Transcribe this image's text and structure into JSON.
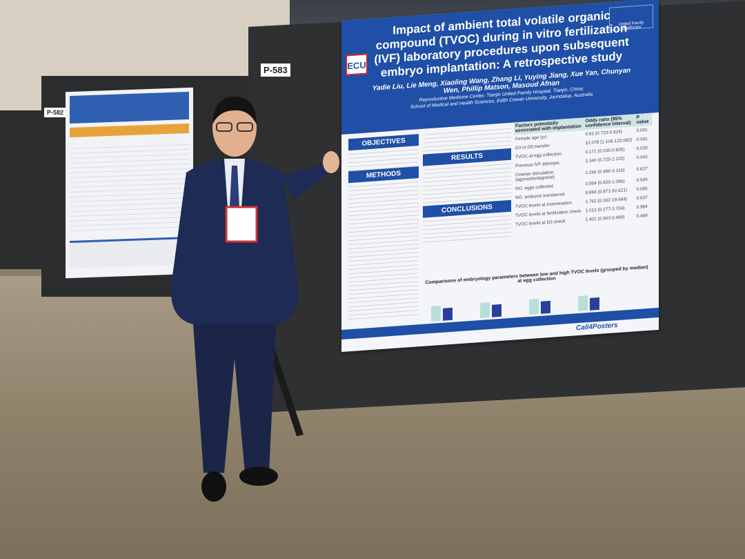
{
  "labels": {
    "main_board": "P-583",
    "left_board": "P-582"
  },
  "poster": {
    "title": "Impact of ambient total volatile organic compound (TVOC) during in vitro fertilization (IVF) laboratory procedures upon subsequent embryo implantation: A retrospective study",
    "authors": "Yadie Liu, Lie Meng, Xiaoling Wang, Zhang Li, Yuying Jiang, Xue Yan, Chunyan Wen, Phillip Matson, Masoud Afnan",
    "affiliation1": "Reproductive Medicine Center, Tianjin United Family Hospital, Tianjin, China;",
    "affiliation2": "School of Medical and Health Sciences, Edith Cowan University, Joondalup, Australia",
    "logo_left": "ECU",
    "logo_right": "United Family Healthcare",
    "sections": {
      "objectives": "OBJECTIVES",
      "methods": "METHODS",
      "results": "RESULTS",
      "conclusions": "CONCLUSIONS"
    },
    "table": {
      "headers": [
        "Factors potentially associated with implantation",
        "Odds ratio (95% confidence interval)",
        "P value"
      ],
      "rows": [
        [
          "Female age (yr)",
          "0.81 (0.723-0.924)",
          "0.001"
        ],
        [
          "D3 or D5 transfer",
          "12.078 (1.105-132.082)",
          "0.041"
        ],
        [
          "TVOC at egg collection",
          "0.171 (0.035-0.835)",
          "0.029"
        ],
        [
          "Previous IVF attempts",
          "1.340 (0.725-2.120)",
          "0.043"
        ],
        [
          "Ovarian stimulation (agonist/antagonist)",
          "1.266 (0.486-3.316)",
          "0.627"
        ],
        [
          "NO. eggs collected",
          "0.954 (0.825-1.096)",
          "0.509"
        ],
        [
          "NO. embryos transferred",
          "8.894 (0.871-92.621)",
          "0.065"
        ],
        [
          "TVOC levels at insemination",
          "1.762 (0.162-19.664)",
          "0.637"
        ],
        [
          "TVOC levels at fertilization check",
          "1.013 (0.277-3.704)",
          "0.984"
        ],
        [
          "TVOC levels at D3 check",
          "1.401 (0.563-3.489)",
          "0.469"
        ]
      ]
    },
    "chart_caption": "Comparisons of embryology parameters between low and high TVOC levels (grouped by median) at egg collection",
    "brand": "Call4Posters"
  },
  "colors": {
    "poster_blue": "#1f4fa6",
    "table_header": "#cfe3e3",
    "bar_light": "#b9ded9",
    "bar_dark": "#2a3f9c"
  }
}
